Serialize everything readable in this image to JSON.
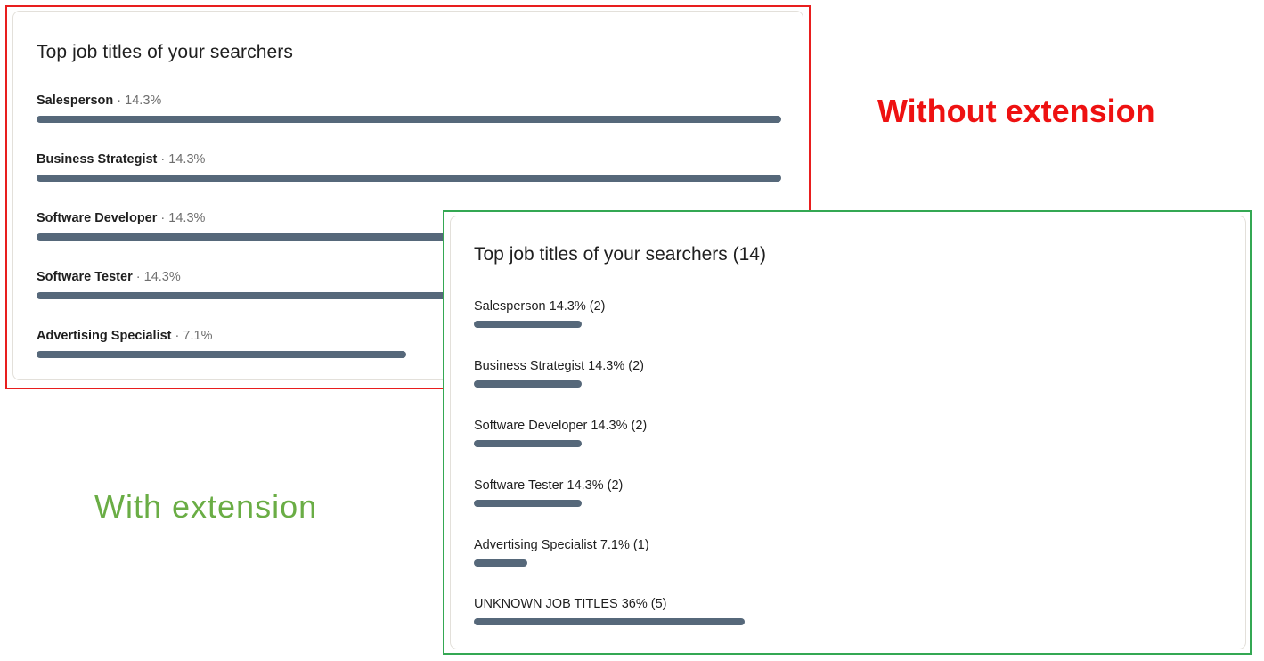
{
  "captions": {
    "without": "Without extension",
    "with": "With extension"
  },
  "colors": {
    "without_frame": "#e81e1e",
    "with_frame": "#34a853",
    "without_caption": "#ee1111",
    "with_caption": "#6aad45",
    "bar": "#56687a"
  },
  "without_panel": {
    "title": "Top job titles of your searchers",
    "separator": "·",
    "items": [
      {
        "name": "Salesperson",
        "percent_label": "14.3%",
        "share": 14.3
      },
      {
        "name": "Business Strategist",
        "percent_label": "14.3%",
        "share": 14.3
      },
      {
        "name": "Software Developer",
        "percent_label": "14.3%",
        "share": 14.3
      },
      {
        "name": "Software Tester",
        "percent_label": "14.3%",
        "share": 14.3
      },
      {
        "name": "Advertising Specialist",
        "percent_label": "7.1%",
        "share": 7.1
      }
    ]
  },
  "with_panel": {
    "title": "Top job titles of your searchers (14)",
    "items": [
      {
        "label": "Salesperson 14.3% (2)",
        "share": 14.3
      },
      {
        "label": "Business Strategist 14.3% (2)",
        "share": 14.3
      },
      {
        "label": "Software Developer 14.3% (2)",
        "share": 14.3
      },
      {
        "label": "Software Tester 14.3% (2)",
        "share": 14.3
      },
      {
        "label": "Advertising Specialist 7.1% (1)",
        "share": 7.1
      },
      {
        "label": "UNKNOWN JOB TITLES 36% (5)",
        "share": 36
      }
    ]
  }
}
